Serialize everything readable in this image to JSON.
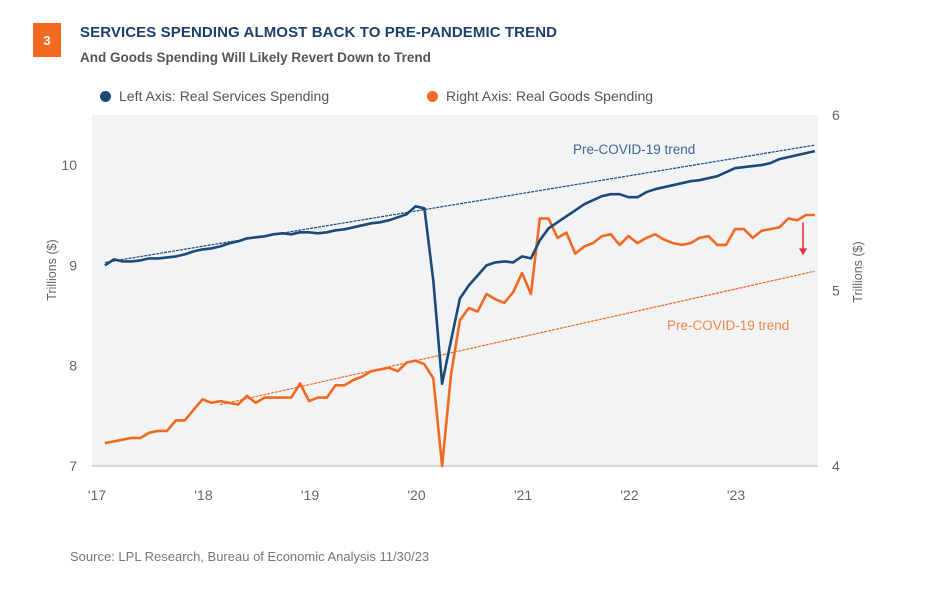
{
  "header": {
    "figure_number": "3",
    "title": "SERVICES SPENDING ALMOST BACK TO PRE-PANDEMIC TREND",
    "subtitle": "And Goods Spending Will Likely Revert Down to Trend"
  },
  "source": "Source: LPL Research, Bureau of Economic Analysis  11/30/23",
  "colors": {
    "services": "#1c4a78",
    "goods": "#f26a21",
    "arrow": "#e0343f",
    "plot_bg": "#f2f3f5",
    "badge": "#f26a21"
  },
  "chart_data": {
    "type": "line",
    "title": "SERVICES SPENDING ALMOST BACK TO PRE-PANDEMIC TREND",
    "subtitle": "And Goods Spending Will Likely Revert Down to Trend",
    "x_start": "2017-02",
    "x_frequency": "monthly",
    "x_ticks": [
      "'17",
      "'18",
      "'19",
      "'20",
      "'21",
      "'22",
      "'23"
    ],
    "left_axis": {
      "label": "Trillions ($)",
      "ylim": [
        7,
        10.5
      ],
      "ticks": [
        "7",
        "8",
        "9",
        "10"
      ]
    },
    "right_axis": {
      "label": "Trillions ($)",
      "ylim": [
        4,
        6
      ],
      "ticks": [
        "4",
        "5",
        "6"
      ]
    },
    "legend": {
      "position": "top",
      "entries": [
        "Left Axis: Real Services Spending",
        "Right Axis: Real Goods Spending"
      ]
    },
    "series": [
      {
        "name": "Left Axis: Real Services Spending",
        "axis": "left",
        "values": [
          9.0,
          9.06,
          9.04,
          9.04,
          9.05,
          9.07,
          9.07,
          9.08,
          9.09,
          9.11,
          9.14,
          9.16,
          9.17,
          9.19,
          9.22,
          9.24,
          9.27,
          9.28,
          9.29,
          9.31,
          9.32,
          9.31,
          9.33,
          9.33,
          9.32,
          9.33,
          9.35,
          9.36,
          9.38,
          9.4,
          9.42,
          9.43,
          9.45,
          9.48,
          9.51,
          9.59,
          9.57,
          8.85,
          7.82,
          8.25,
          8.67,
          8.8,
          8.9,
          9.0,
          9.03,
          9.04,
          9.03,
          9.09,
          9.07,
          9.25,
          9.37,
          9.43,
          9.49,
          9.55,
          9.61,
          9.65,
          9.69,
          9.71,
          9.71,
          9.68,
          9.68,
          9.73,
          9.76,
          9.78,
          9.8,
          9.82,
          9.84,
          9.85,
          9.87,
          9.89,
          9.93,
          9.97,
          9.98,
          9.99,
          10.0,
          10.02,
          10.06,
          10.08,
          10.1,
          10.12,
          10.14
        ]
      },
      {
        "name": "Right Axis: Real Goods Spending",
        "axis": "right",
        "values": [
          4.13,
          4.14,
          4.15,
          4.16,
          4.16,
          4.19,
          4.2,
          4.2,
          4.26,
          4.26,
          4.32,
          4.38,
          4.36,
          4.37,
          4.36,
          4.35,
          4.4,
          4.36,
          4.39,
          4.39,
          4.39,
          4.39,
          4.47,
          4.37,
          4.39,
          4.39,
          4.46,
          4.46,
          4.49,
          4.51,
          4.54,
          4.55,
          4.56,
          4.54,
          4.59,
          4.6,
          4.58,
          4.5,
          4.0,
          4.52,
          4.83,
          4.9,
          4.88,
          4.98,
          4.95,
          4.93,
          4.99,
          5.1,
          4.98,
          5.41,
          5.41,
          5.3,
          5.33,
          5.21,
          5.25,
          5.27,
          5.31,
          5.32,
          5.26,
          5.31,
          5.27,
          5.3,
          5.32,
          5.29,
          5.27,
          5.26,
          5.27,
          5.3,
          5.31,
          5.26,
          5.26,
          5.35,
          5.35,
          5.3,
          5.34,
          5.35,
          5.36,
          5.41,
          5.4,
          5.43,
          5.43
        ]
      },
      {
        "name": "Services Pre-COVID-19 trend",
        "axis": "left",
        "style": "dashed",
        "start": {
          "date": "2017-02",
          "value": 9.03
        },
        "end": {
          "date": "2023-10",
          "value": 10.2
        },
        "label": "Pre-COVID-19 trend"
      },
      {
        "name": "Goods Pre-COVID-19 trend",
        "axis": "right",
        "style": "dashed",
        "start": {
          "date": "2018-03",
          "value": 4.35
        },
        "end": {
          "date": "2023-10",
          "value": 5.11
        },
        "label": "Pre-COVID-19 trend"
      }
    ],
    "annotations": [
      {
        "type": "arrow",
        "direction": "down",
        "date": "2023-09",
        "from_value": 5.41,
        "to_value": 5.2,
        "axis": "right",
        "note": "goods expected to revert down to trend"
      }
    ],
    "grid": false
  }
}
